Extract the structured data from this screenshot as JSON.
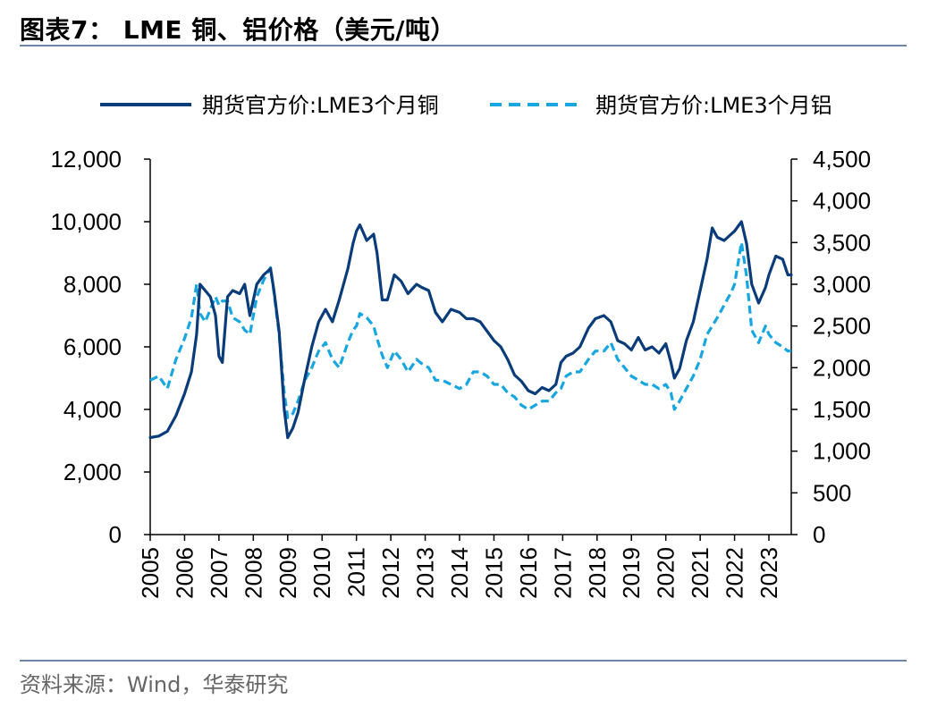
{
  "title": "图表7： LME 铜、铝价格（美元/吨）",
  "source": "资料来源：Wind，华泰研究",
  "colors": {
    "copper": "#0b3c7a",
    "aluminum": "#17a6df",
    "rule": "#6d86a8"
  },
  "chart_data": {
    "type": "line",
    "title": "",
    "xlabel": "",
    "ylabel": "",
    "x_ticks": [
      "2005",
      "2006",
      "2007",
      "2008",
      "2009",
      "2010",
      "2011",
      "2012",
      "2013",
      "2014",
      "2015",
      "2016",
      "2017",
      "2018",
      "2019",
      "2020",
      "2021",
      "2022",
      "2023"
    ],
    "xlim": [
      2005,
      2023.65
    ],
    "ylim_left": [
      0,
      12000
    ],
    "ylim_right": [
      0,
      4500
    ],
    "y_ticks_left": [
      "0",
      "2,000",
      "4,000",
      "6,000",
      "8,000",
      "10,000",
      "12,000"
    ],
    "y_ticks_right": [
      "0",
      "500",
      "1,000",
      "1,500",
      "2,000",
      "2,500",
      "3,000",
      "3,500",
      "4,000",
      "4,500"
    ],
    "grid": false,
    "legend_position": "top",
    "series": [
      {
        "name": "期货官方价:LME3个月铜",
        "axis": "left",
        "style": "solid",
        "x": [
          2005.0,
          2005.25,
          2005.5,
          2005.75,
          2006.0,
          2006.2,
          2006.35,
          2006.45,
          2006.6,
          2006.75,
          2006.9,
          2007.0,
          2007.1,
          2007.25,
          2007.4,
          2007.6,
          2007.75,
          2007.9,
          2008.1,
          2008.3,
          2008.5,
          2008.6,
          2008.75,
          2008.9,
          2009.0,
          2009.15,
          2009.3,
          2009.5,
          2009.7,
          2009.9,
          2010.1,
          2010.3,
          2010.5,
          2010.75,
          2010.9,
          2011.0,
          2011.1,
          2011.3,
          2011.5,
          2011.6,
          2011.75,
          2011.9,
          2012.1,
          2012.3,
          2012.5,
          2012.75,
          2012.9,
          2013.1,
          2013.3,
          2013.5,
          2013.75,
          2014.0,
          2014.2,
          2014.4,
          2014.6,
          2014.8,
          2015.0,
          2015.2,
          2015.4,
          2015.6,
          2015.8,
          2016.0,
          2016.2,
          2016.4,
          2016.6,
          2016.8,
          2016.95,
          2017.1,
          2017.3,
          2017.5,
          2017.75,
          2017.95,
          2018.2,
          2018.4,
          2018.6,
          2018.8,
          2019.0,
          2019.2,
          2019.4,
          2019.6,
          2019.8,
          2020.0,
          2020.15,
          2020.25,
          2020.4,
          2020.6,
          2020.8,
          2021.0,
          2021.2,
          2021.35,
          2021.5,
          2021.7,
          2021.9,
          2022.0,
          2022.2,
          2022.35,
          2022.5,
          2022.7,
          2022.9,
          2023.0,
          2023.2,
          2023.4,
          2023.55,
          2023.65
        ],
        "values": [
          3100,
          3150,
          3300,
          3800,
          4500,
          5200,
          6400,
          8000,
          7800,
          7600,
          7000,
          5700,
          5500,
          7600,
          7800,
          7700,
          8000,
          7000,
          8000,
          8300,
          8500,
          7800,
          6500,
          4000,
          3100,
          3400,
          3900,
          5000,
          6000,
          6800,
          7200,
          6800,
          7500,
          8500,
          9300,
          9700,
          9900,
          9400,
          9600,
          9000,
          7500,
          7500,
          8300,
          8100,
          7700,
          8000,
          7900,
          7800,
          7100,
          6800,
          7200,
          7100,
          6900,
          6900,
          6800,
          6500,
          6200,
          6000,
          5600,
          5100,
          4900,
          4600,
          4500,
          4700,
          4600,
          4800,
          5500,
          5700,
          5800,
          6000,
          6600,
          6900,
          7000,
          6800,
          6200,
          6100,
          5900,
          6300,
          5900,
          6000,
          5800,
          6100,
          5500,
          5000,
          5300,
          6200,
          6800,
          7800,
          8800,
          9800,
          9500,
          9400,
          9600,
          9700,
          10000,
          9300,
          8000,
          7400,
          7900,
          8300,
          8900,
          8800,
          8300,
          8300
        ]
      },
      {
        "name": "期货官方价:LME3个月铝",
        "axis": "right",
        "style": "dashed",
        "x": [
          2005.0,
          2005.25,
          2005.5,
          2005.75,
          2006.0,
          2006.2,
          2006.35,
          2006.45,
          2006.6,
          2006.75,
          2006.9,
          2007.0,
          2007.1,
          2007.25,
          2007.4,
          2007.6,
          2007.75,
          2007.9,
          2008.1,
          2008.3,
          2008.5,
          2008.6,
          2008.75,
          2008.9,
          2009.0,
          2009.15,
          2009.3,
          2009.5,
          2009.7,
          2009.9,
          2010.1,
          2010.3,
          2010.5,
          2010.75,
          2010.9,
          2011.0,
          2011.1,
          2011.3,
          2011.5,
          2011.6,
          2011.75,
          2011.9,
          2012.1,
          2012.3,
          2012.5,
          2012.75,
          2012.9,
          2013.1,
          2013.3,
          2013.5,
          2013.75,
          2014.0,
          2014.2,
          2014.4,
          2014.6,
          2014.8,
          2015.0,
          2015.2,
          2015.4,
          2015.6,
          2015.8,
          2016.0,
          2016.2,
          2016.4,
          2016.6,
          2016.8,
          2016.95,
          2017.1,
          2017.3,
          2017.5,
          2017.75,
          2017.95,
          2018.2,
          2018.4,
          2018.6,
          2018.8,
          2019.0,
          2019.2,
          2019.4,
          2019.6,
          2019.8,
          2020.0,
          2020.15,
          2020.25,
          2020.4,
          2020.6,
          2020.8,
          2021.0,
          2021.2,
          2021.35,
          2021.5,
          2021.7,
          2021.9,
          2022.0,
          2022.2,
          2022.35,
          2022.5,
          2022.7,
          2022.9,
          2023.0,
          2023.2,
          2023.4,
          2023.55,
          2023.65
        ],
        "values": [
          1850,
          1900,
          1750,
          2100,
          2350,
          2600,
          3000,
          2650,
          2550,
          2700,
          2850,
          2750,
          2800,
          2800,
          2600,
          2550,
          2450,
          2400,
          2850,
          3050,
          3200,
          2900,
          2400,
          1700,
          1400,
          1450,
          1600,
          1850,
          2000,
          2200,
          2300,
          2100,
          2000,
          2300,
          2450,
          2500,
          2650,
          2600,
          2500,
          2350,
          2150,
          2000,
          2200,
          2100,
          1950,
          2100,
          2050,
          2000,
          1850,
          1850,
          1800,
          1750,
          1800,
          1950,
          1950,
          1900,
          1800,
          1800,
          1700,
          1650,
          1550,
          1500,
          1550,
          1600,
          1600,
          1700,
          1750,
          1900,
          1950,
          1950,
          2100,
          2200,
          2200,
          2300,
          2100,
          2000,
          1900,
          1850,
          1800,
          1800,
          1750,
          1800,
          1700,
          1500,
          1600,
          1750,
          1900,
          2100,
          2400,
          2500,
          2600,
          2750,
          2900,
          3000,
          3500,
          3100,
          2450,
          2300,
          2500,
          2400,
          2300,
          2250,
          2200,
          2200
        ]
      }
    ]
  }
}
